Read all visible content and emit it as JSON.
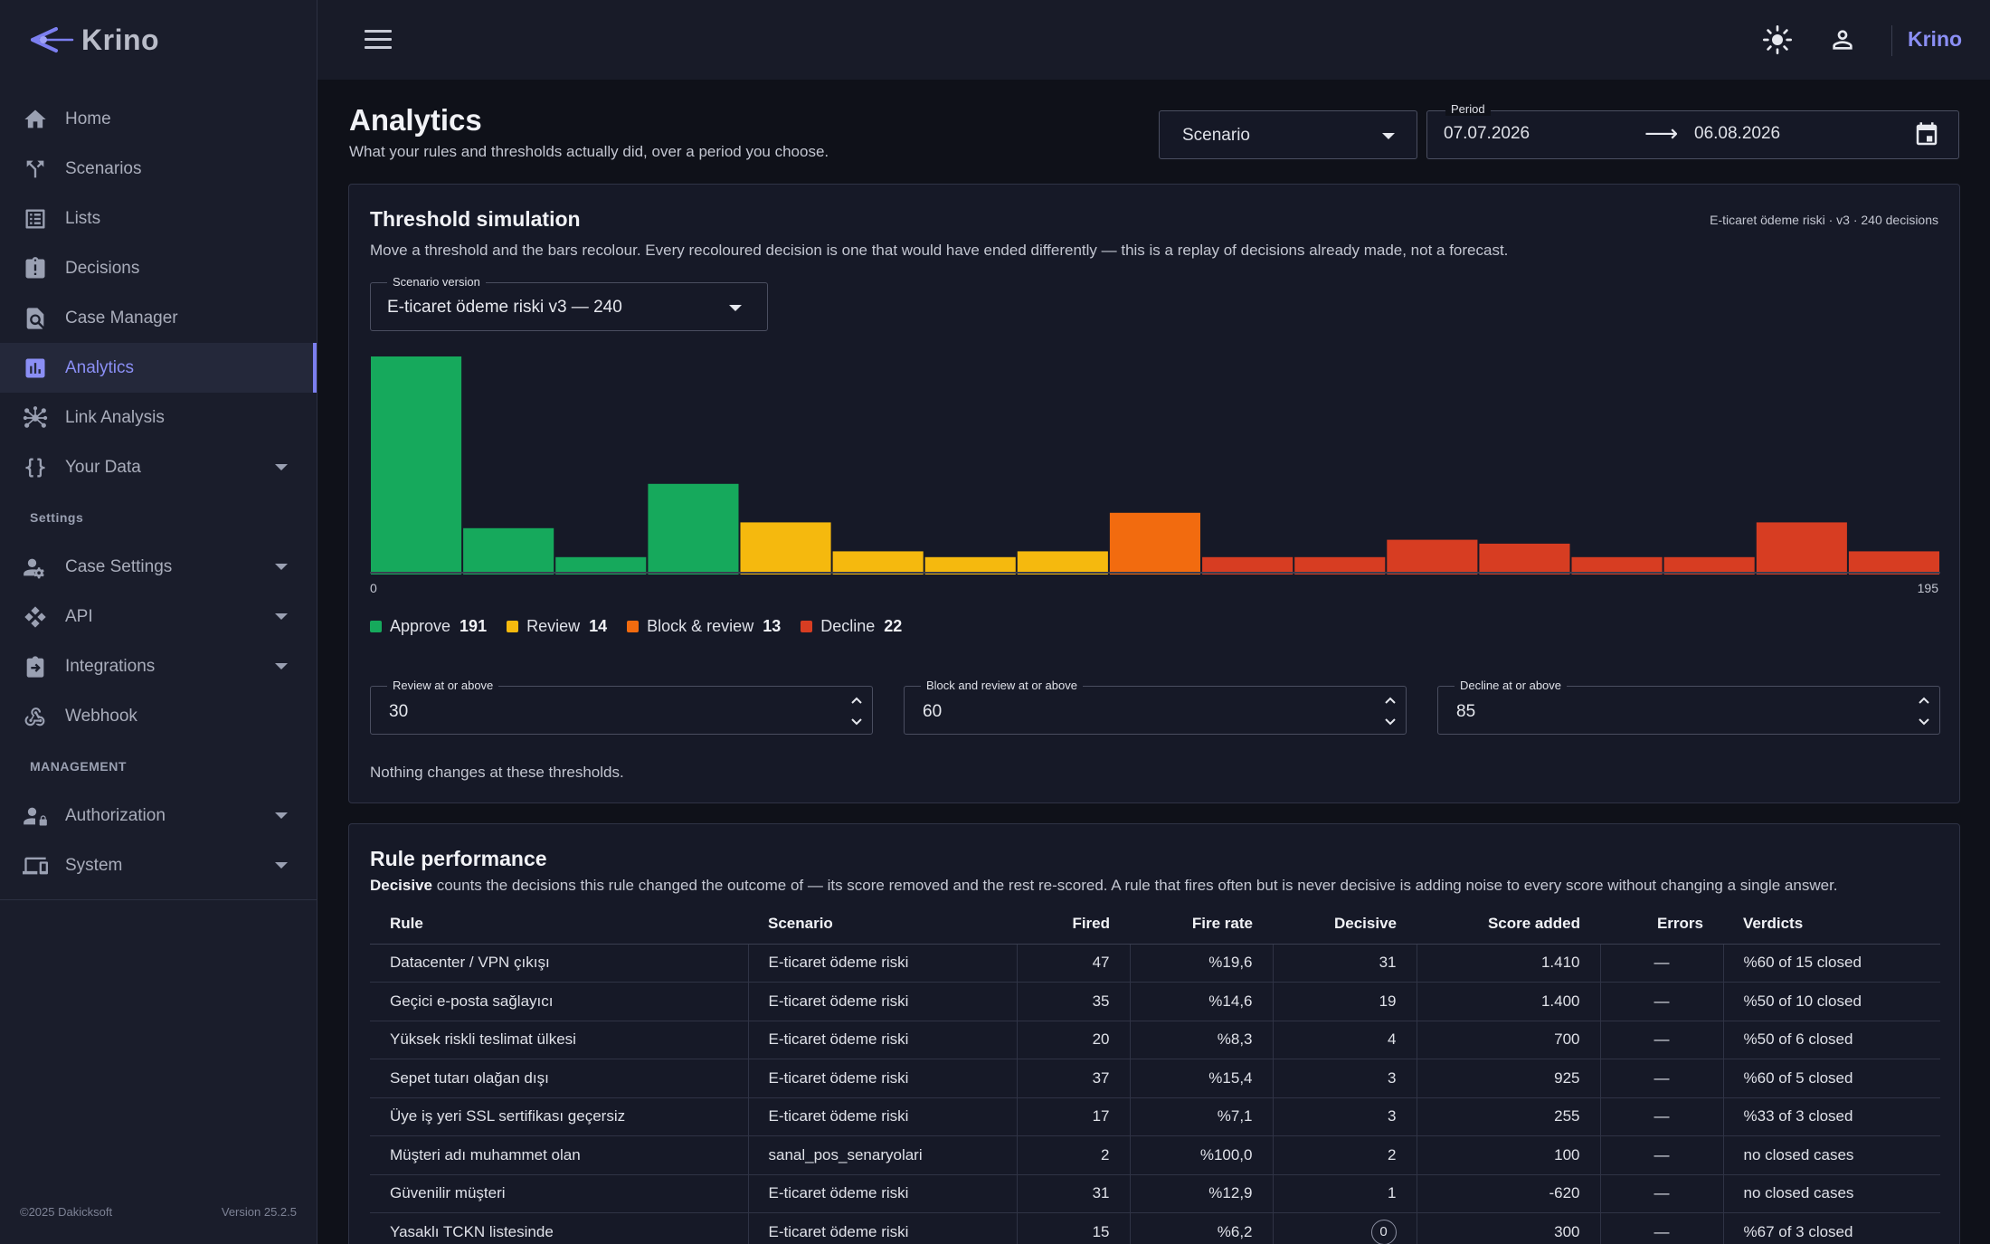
{
  "app": {
    "name": "Krino",
    "copyright": "©2025 Dakicksoft",
    "version": "Version 25.2.5"
  },
  "sidebar": {
    "items": [
      {
        "label": "Home",
        "icon": "home-icon"
      },
      {
        "label": "Scenarios",
        "icon": "fork-icon"
      },
      {
        "label": "Lists",
        "icon": "list-icon"
      },
      {
        "label": "Decisions",
        "icon": "clipboard-alert-icon"
      },
      {
        "label": "Case Manager",
        "icon": "case-search-icon"
      },
      {
        "label": "Analytics",
        "icon": "analytics-icon",
        "active": true
      },
      {
        "label": "Link Analysis",
        "icon": "network-icon"
      },
      {
        "label": "Your Data",
        "icon": "braces-icon",
        "expandable": true
      }
    ],
    "settings_header": "Settings",
    "settings_items": [
      {
        "label": "Case Settings",
        "icon": "user-gear-icon"
      },
      {
        "label": "API",
        "icon": "api-icon"
      },
      {
        "label": "Integrations",
        "icon": "integration-icon"
      },
      {
        "label": "Webhook",
        "icon": "webhook-icon"
      }
    ],
    "management_header": "MANAGEMENT",
    "management_items": [
      {
        "label": "Authorization",
        "icon": "user-lock-icon"
      },
      {
        "label": "System",
        "icon": "devices-icon"
      }
    ]
  },
  "topbar": {
    "brand": "Krino"
  },
  "page": {
    "title": "Analytics",
    "subtitle": "What your rules and thresholds actually did, over a period you choose."
  },
  "filters": {
    "scenario_placeholder": "Scenario",
    "period_label": "Period",
    "period_from": "07.07.2026",
    "period_arrow": "⟶",
    "period_to": "06.08.2026"
  },
  "threshold": {
    "title": "Threshold simulation",
    "meta": "E-ticaret ödeme riski · v3 · 240 decisions",
    "description": "Move a threshold and the bars recolour. Every recoloured decision is one that would have ended differently — this is a replay of decisions already made, not a forecast.",
    "version_label": "Scenario version",
    "version_value": "E-ticaret ödeme riski v3 — 240",
    "axis_min": "0",
    "axis_max": "195",
    "legend": [
      {
        "label": "Approve",
        "count": "191",
        "color": "#16a95c"
      },
      {
        "label": "Review",
        "count": "14",
        "color": "#f5b90e"
      },
      {
        "label": "Block & review",
        "count": "13",
        "color": "#f26b0f"
      },
      {
        "label": "Decline",
        "count": "22",
        "color": "#d73d22"
      }
    ],
    "fields": [
      {
        "label": "Review at or above",
        "value": "30"
      },
      {
        "label": "Block and review at or above",
        "value": "60"
      },
      {
        "label": "Decline at or above",
        "value": "85"
      }
    ],
    "status": "Nothing changes at these thresholds."
  },
  "chart_data": {
    "type": "bar",
    "xlim": [
      0,
      195
    ],
    "bins": 17,
    "values": [
      113,
      24,
      9,
      47,
      27,
      12,
      9,
      12,
      32,
      9,
      9,
      18,
      16,
      9,
      9,
      27,
      12
    ],
    "colors": [
      "#16a95c",
      "#16a95c",
      "#16a95c",
      "#16a95c",
      "#f5b90e",
      "#f5b90e",
      "#f5b90e",
      "#f5b90e",
      "#f26b0f",
      "#d73d22",
      "#d73d22",
      "#d73d22",
      "#d73d22",
      "#d73d22",
      "#d73d22",
      "#d73d22",
      "#d73d22"
    ]
  },
  "rules": {
    "title": "Rule performance",
    "desc_bold": "Decisive",
    "desc_rest": " counts the decisions this rule changed the outcome of — its score removed and the rest re-scored. A rule that fires often but is never decisive is adding noise to every score without changing a single answer.",
    "columns": [
      "Rule",
      "Scenario",
      "Fired",
      "Fire rate",
      "Decisive",
      "Score added",
      "Errors",
      "Verdicts"
    ],
    "rows": [
      [
        "Datacenter / VPN çıkışı",
        "E-ticaret ödeme riski",
        "47",
        "%19,6",
        "31",
        "1.410",
        "—",
        "%60 of 15 closed"
      ],
      [
        "Geçici e-posta sağlayıcı",
        "E-ticaret ödeme riski",
        "35",
        "%14,6",
        "19",
        "1.400",
        "—",
        "%50 of 10 closed"
      ],
      [
        "Yüksek riskli teslimat ülkesi",
        "E-ticaret ödeme riski",
        "20",
        "%8,3",
        "4",
        "700",
        "—",
        "%50 of 6 closed"
      ],
      [
        "Sepet tutarı olağan dışı",
        "E-ticaret ödeme riski",
        "37",
        "%15,4",
        "3",
        "925",
        "—",
        "%60 of 5 closed"
      ],
      [
        "Üye iş yeri SSL sertifikası geçersiz",
        "E-ticaret ödeme riski",
        "17",
        "%7,1",
        "3",
        "255",
        "—",
        "%33 of 3 closed"
      ],
      [
        "Müşteri adı muhammet olan",
        "sanal_pos_senaryolari",
        "2",
        "%100,0",
        "2",
        "100",
        "—",
        "no closed cases"
      ],
      [
        "Güvenilir müşteri",
        "E-ticaret ödeme riski",
        "31",
        "%12,9",
        "1",
        "-620",
        "—",
        "no closed cases"
      ],
      [
        "Yasaklı TCKN listesinde",
        "E-ticaret ödeme riski",
        "15",
        "%6,2",
        "0",
        "300",
        "—",
        "%67 of 3 closed"
      ]
    ]
  }
}
